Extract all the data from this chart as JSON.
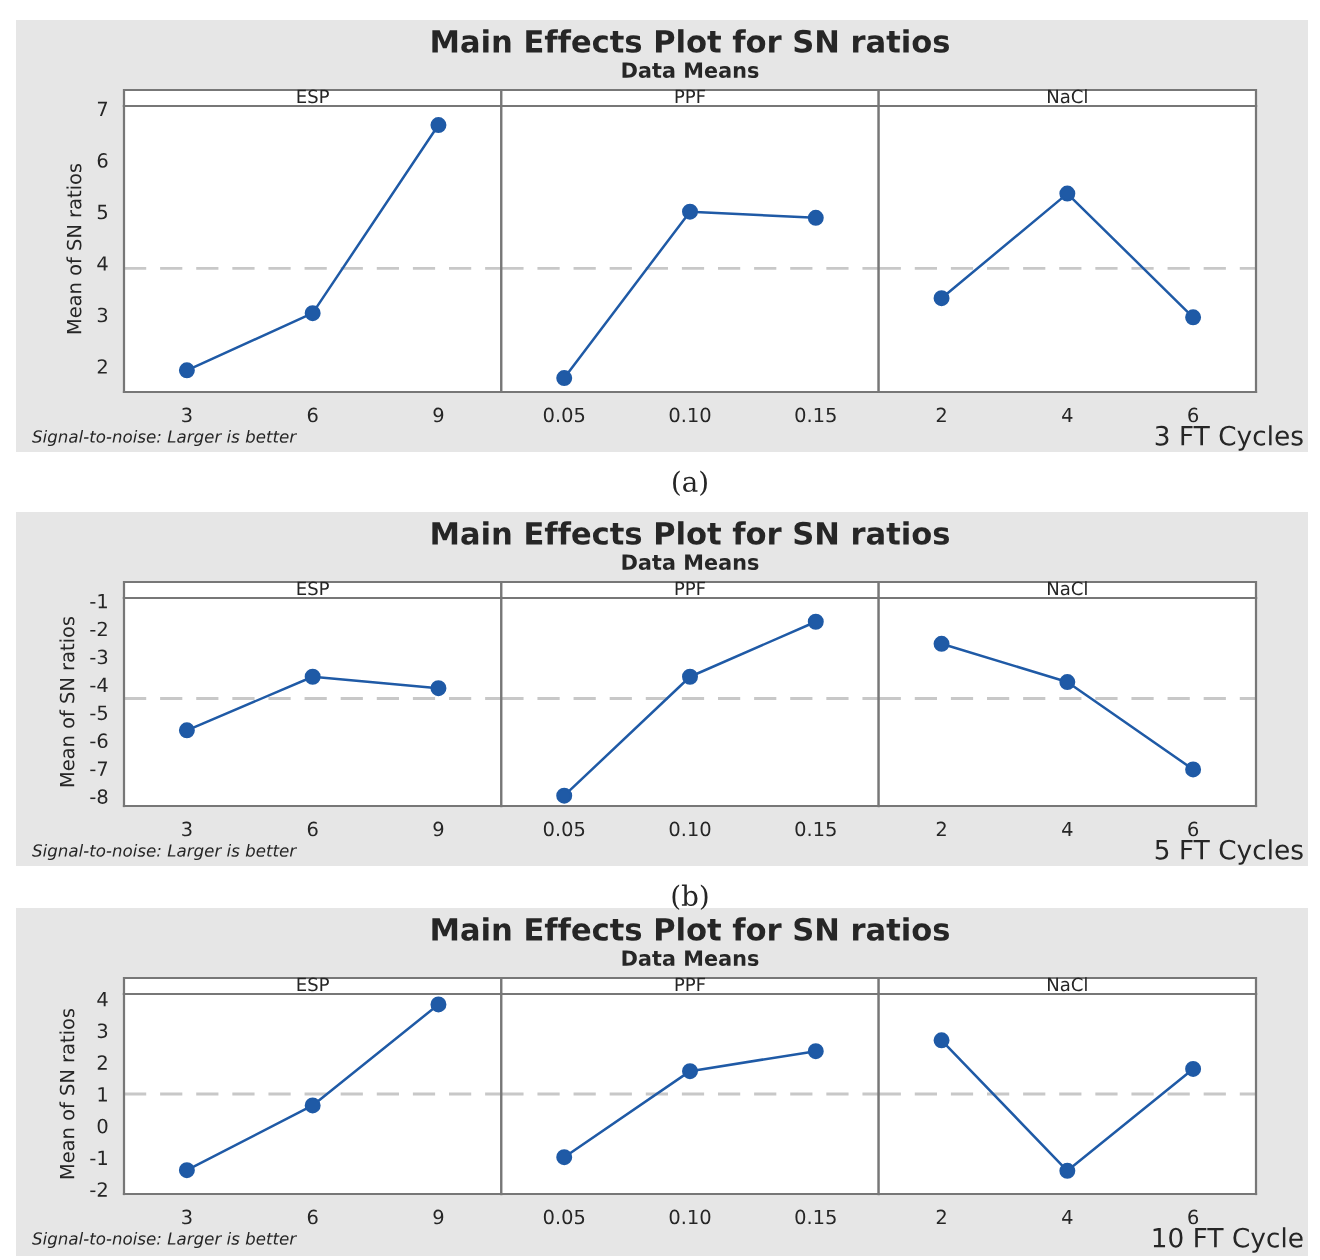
{
  "chart_data": [
    {
      "type": "line",
      "title": "ESP",
      "ylabel": "Mean of SN ratios",
      "categories": [
        "3",
        "6",
        "9"
      ],
      "series": [
        {
          "color": "#1f5aa6",
          "values": [
            1.92,
            3.03,
            6.68
          ]
        }
      ],
      "ylim": [
        1.5,
        7.05
      ],
      "yticks": [
        2,
        3,
        4,
        5,
        6,
        7
      ],
      "ref_lines": [
        {
          "axis": "y",
          "value": 3.9,
          "color": "#c8c8c8",
          "line_style": "dashed"
        }
      ],
      "marker": "circle",
      "line_style": "solid",
      "grid": false,
      "annotations": [
        "Main Effects Plot for SN ratios",
        "Data Means",
        "Signal-to-noise: Larger is better",
        "3 FT Cycles",
        "(a)"
      ]
    },
    {
      "type": "line",
      "title": "PPF",
      "categories": [
        "0.05",
        "0.10",
        "0.15"
      ],
      "series": [
        {
          "color": "#1f5aa6",
          "values": [
            1.77,
            5.0,
            4.88
          ]
        }
      ],
      "ylim": [
        1.5,
        7.05
      ],
      "yticks": [
        2,
        3,
        4,
        5,
        6,
        7
      ],
      "tick_labels": "x",
      "ref_lines": [
        {
          "axis": "y",
          "value": 3.9,
          "color": "#c8c8c8",
          "line_style": "dashed"
        }
      ],
      "marker": "circle",
      "line_style": "solid",
      "grid": false
    },
    {
      "type": "line",
      "title": "NaCl",
      "categories": [
        "2",
        "4",
        "6"
      ],
      "series": [
        {
          "color": "#1f5aa6",
          "values": [
            3.32,
            5.35,
            2.95
          ]
        }
      ],
      "ylim": [
        1.5,
        7.05
      ],
      "yticks": [
        2,
        3,
        4,
        5,
        6,
        7
      ],
      "tick_labels": "x",
      "ref_lines": [
        {
          "axis": "y",
          "value": 3.9,
          "color": "#c8c8c8",
          "line_style": "dashed"
        }
      ],
      "marker": "circle",
      "line_style": "solid",
      "grid": false
    },
    {
      "type": "line",
      "title": "ESP",
      "ylabel": "Mean of SN ratios",
      "categories": [
        "3",
        "6",
        "9"
      ],
      "series": [
        {
          "color": "#1f5aa6",
          "values": [
            -5.64,
            -3.72,
            -4.13
          ]
        }
      ],
      "ylim": [
        -8.35,
        -0.9
      ],
      "yticks": [
        -1,
        -2,
        -3,
        -4,
        -5,
        -6,
        -7,
        -8
      ],
      "ref_lines": [
        {
          "axis": "y",
          "value": -4.5,
          "color": "#c8c8c8",
          "line_style": "dashed"
        }
      ],
      "marker": "circle",
      "line_style": "solid",
      "grid": false,
      "annotations": [
        "Main Effects Plot for SN ratios",
        "Data Means",
        "Signal-to-noise: Larger is better",
        "5 FT Cycles",
        "(b)"
      ]
    },
    {
      "type": "line",
      "title": "PPF",
      "categories": [
        "0.05",
        "0.10",
        "0.15"
      ],
      "series": [
        {
          "color": "#1f5aa6",
          "values": [
            -7.98,
            -3.72,
            -1.75
          ]
        }
      ],
      "ylim": [
        -8.35,
        -0.9
      ],
      "yticks": [
        -1,
        -2,
        -3,
        -4,
        -5,
        -6,
        -7,
        -8
      ],
      "tick_labels": "x",
      "ref_lines": [
        {
          "axis": "y",
          "value": -4.5,
          "color": "#c8c8c8",
          "line_style": "dashed"
        }
      ],
      "marker": "circle",
      "line_style": "solid",
      "grid": false
    },
    {
      "type": "line",
      "title": "NaCl",
      "categories": [
        "2",
        "4",
        "6"
      ],
      "series": [
        {
          "color": "#1f5aa6",
          "values": [
            -2.54,
            -3.91,
            -7.04
          ]
        }
      ],
      "ylim": [
        -8.35,
        -0.9
      ],
      "yticks": [
        -1,
        -2,
        -3,
        -4,
        -5,
        -6,
        -7,
        -8
      ],
      "tick_labels": "x",
      "ref_lines": [
        {
          "axis": "y",
          "value": -4.5,
          "color": "#c8c8c8",
          "line_style": "dashed"
        }
      ],
      "marker": "circle",
      "line_style": "solid",
      "grid": false
    },
    {
      "type": "line",
      "title": "ESP",
      "ylabel": "Mean of SN ratios",
      "categories": [
        "3",
        "6",
        "9"
      ],
      "series": [
        {
          "color": "#1f5aa6",
          "values": [
            -1.4,
            0.64,
            3.82
          ]
        }
      ],
      "ylim": [
        -2.15,
        4.15
      ],
      "yticks": [
        4,
        3,
        2,
        1,
        0,
        -1,
        -2
      ],
      "ref_lines": [
        {
          "axis": "y",
          "value": 1.0,
          "color": "#c8c8c8",
          "line_style": "dashed"
        }
      ],
      "marker": "circle",
      "line_style": "solid",
      "grid": false,
      "annotations": [
        "Main Effects Plot for SN ratios",
        "Data Means",
        "Signal-to-noise: Larger is better",
        "10 FT Cycle"
      ]
    },
    {
      "type": "line",
      "title": "PPF",
      "categories": [
        "0.05",
        "0.10",
        "0.15"
      ],
      "series": [
        {
          "color": "#1f5aa6",
          "values": [
            -0.99,
            1.72,
            2.35
          ]
        }
      ],
      "ylim": [
        -2.15,
        4.15
      ],
      "yticks": [
        4,
        3,
        2,
        1,
        0,
        -1,
        -2
      ],
      "tick_labels": "x",
      "ref_lines": [
        {
          "axis": "y",
          "value": 1.0,
          "color": "#c8c8c8",
          "line_style": "dashed"
        }
      ],
      "marker": "circle",
      "line_style": "solid",
      "grid": false
    },
    {
      "type": "line",
      "title": "NaCl",
      "categories": [
        "2",
        "4",
        "6"
      ],
      "series": [
        {
          "color": "#1f5aa6",
          "values": [
            2.69,
            -1.42,
            1.79
          ]
        }
      ],
      "ylim": [
        -2.15,
        4.15
      ],
      "yticks": [
        4,
        3,
        2,
        1,
        0,
        -1,
        -2
      ],
      "tick_labels": "x",
      "ref_lines": [
        {
          "axis": "y",
          "value": 1.0,
          "color": "#c8c8c8",
          "line_style": "dashed"
        }
      ],
      "marker": "circle",
      "line_style": "solid",
      "grid": false
    }
  ]
}
